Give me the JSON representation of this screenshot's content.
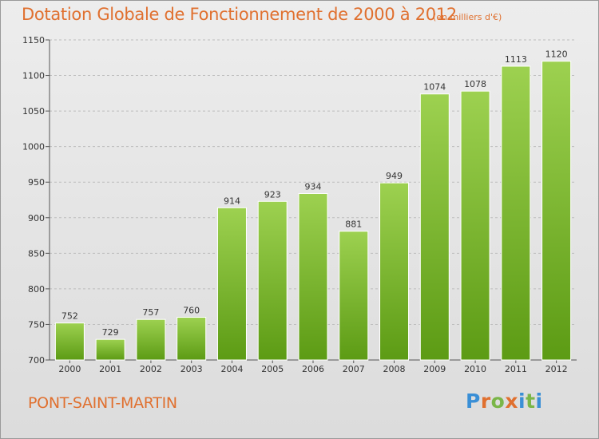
{
  "header": {
    "title": "Dotation Globale de Fonctionnement de 2000 à 2012",
    "unit": "(en milliers d'€)"
  },
  "footer": {
    "place": "PONT-SAINT-MARTIN",
    "logo": [
      "P",
      "r",
      "o",
      "x",
      "i",
      "t",
      "i"
    ]
  },
  "colors": {
    "title": "#e0702f",
    "bar_top": "#9dd150",
    "bar_bottom": "#5c9b14",
    "logo": [
      "#3a8fd6",
      "#e0702f",
      "#7ab648",
      "#e0702f",
      "#3a8fd6",
      "#7ab648",
      "#3a8fd6"
    ]
  },
  "chart_data": {
    "type": "bar",
    "title": "Dotation Globale de Fonctionnement de 2000 à 2012",
    "subtitle": "(en milliers d'€)",
    "xlabel": "",
    "ylabel": "",
    "categories": [
      "2000",
      "2001",
      "2002",
      "2003",
      "2004",
      "2005",
      "2006",
      "2007",
      "2008",
      "2009",
      "2010",
      "2011",
      "2012"
    ],
    "values": [
      752,
      729,
      757,
      760,
      914,
      923,
      934,
      881,
      949,
      1074,
      1078,
      1113,
      1120
    ],
    "ylim": [
      700,
      1150
    ],
    "yticks": [
      700,
      750,
      800,
      850,
      900,
      950,
      1000,
      1050,
      1100,
      1150
    ],
    "grid": true,
    "legend": "none"
  }
}
